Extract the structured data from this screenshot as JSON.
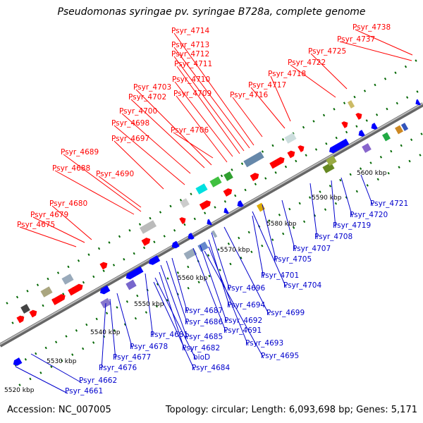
{
  "title": "Pseudomonas syringae pv. syringae B728a, complete genome",
  "footer": {
    "accession": "Accession: NC_007005",
    "summary": "Topology: circular; Length: 6,093,698 bp; Genes: 5,171"
  },
  "colors": {
    "top_strand_label": "#ff0000",
    "bottom_strand_label": "#0000cc",
    "forward_gene": "#ff0000",
    "reverse_gene": "#0000ff",
    "backbone": "#888888",
    "tick": "#006600"
  },
  "ruler": [
    "5520 kbp",
    "5530 kbp",
    "5540 kbp",
    "5550 kbp",
    "5560 kbp",
    "5570 kbp",
    "5580 kbp",
    "5590 kbp",
    "5600 kbp"
  ],
  "top_labels": [
    "Psyr_4738",
    "Psyr_4737",
    "Psyr_4725",
    "Psyr_4722",
    "Psyr_4718",
    "Psyr_4717",
    "Psyr_4716",
    "Psyr_4714",
    "Psyr_4713",
    "Psyr_4712",
    "Psyr_4711",
    "Psyr_4710",
    "Psyr_4709",
    "Psyr_4703",
    "Psyr_4702",
    "Psyr_4700",
    "Psyr_4706",
    "Psyr_4698",
    "Psyr_4697",
    "Psyr_4689",
    "Psyr_4688",
    "Psyr_4690",
    "Psyr_4680",
    "Psyr_4679",
    "Psyr_4675"
  ],
  "bottom_labels": [
    "Psyr_4721",
    "Psyr_4720",
    "Psyr_4719",
    "Psyr_4708",
    "Psyr_4707",
    "Psyr_4705",
    "Psyr_4704",
    "Psyr_4701",
    "Psyr_4699",
    "Psyr_4696",
    "Psyr_4694",
    "Psyr_4692",
    "Psyr_4693",
    "Psyr_4691",
    "Psyr_4695",
    "Psyr_4687",
    "Psyr_4686",
    "Psyr_4685",
    "Psyr_4681",
    "Psyr_4682",
    "bioD",
    "Psyr_4684",
    "Psyr_4678",
    "Psyr_4677",
    "Psyr_4676",
    "Psyr_4662",
    "Psyr_4661"
  ]
}
